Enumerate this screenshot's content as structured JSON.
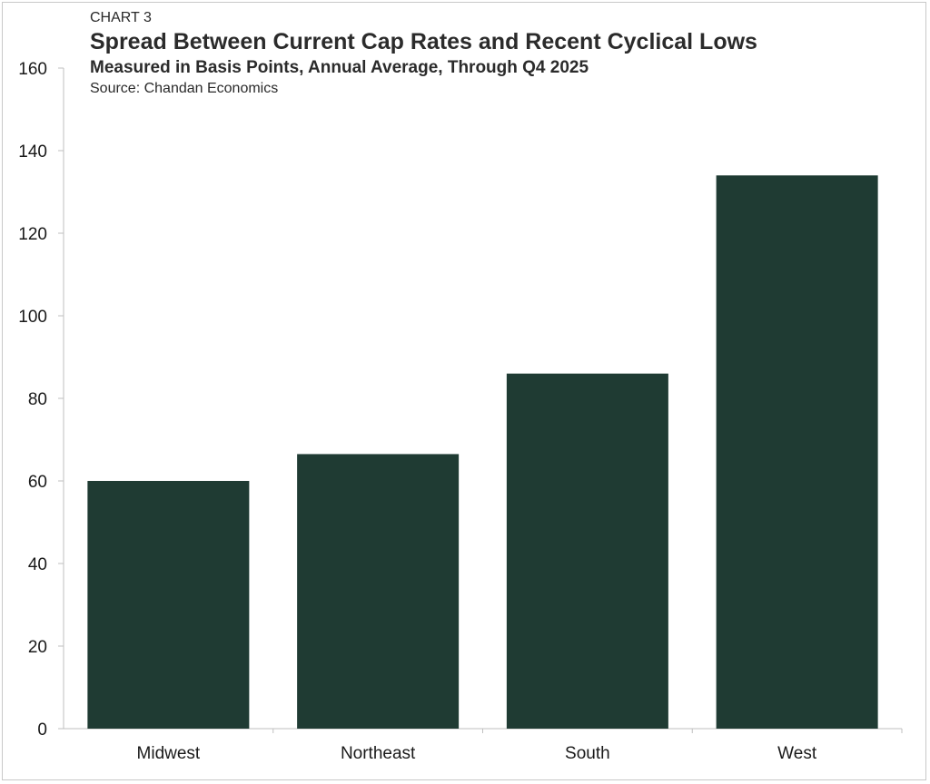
{
  "chart_data": {
    "type": "bar",
    "label": "CHART 3",
    "title": "Spread Between Current Cap Rates and Recent Cyclical Lows",
    "subtitle": "Measured in Basis Points, Annual Average, Through Q4 2025",
    "source": "Source: Chandan Economics",
    "categories": [
      "Midwest",
      "Northeast",
      "South",
      "West"
    ],
    "values": [
      60,
      66.5,
      86,
      134
    ],
    "ylim": [
      0,
      160
    ],
    "yticks": [
      0,
      20,
      40,
      60,
      80,
      100,
      120,
      140,
      160
    ],
    "grid": false,
    "legend": "none",
    "bar_color": "#1f3b33",
    "axis_color": "#bfbfbf"
  }
}
